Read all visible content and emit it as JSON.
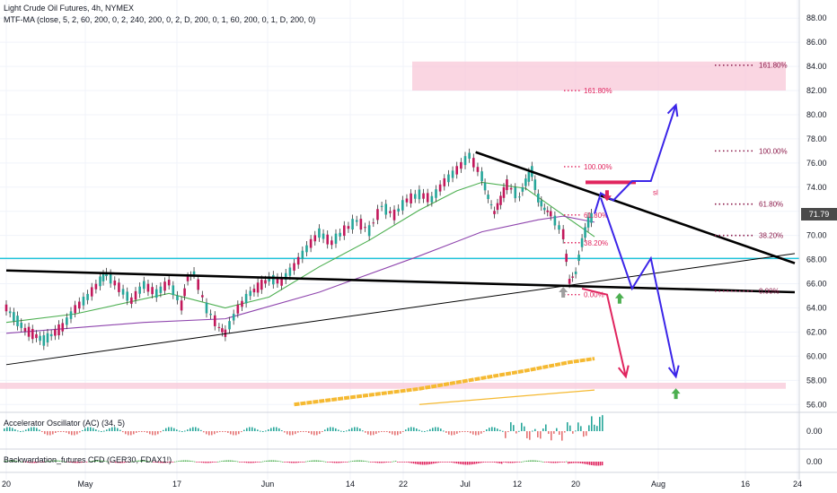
{
  "header": {
    "title": "Light Crude Oil Futures, 4h, NYMEX",
    "indicator": "MTF-MA (close, 5, 2, 60, 200, 0, 2, 240, 200, 0, 2, D, 200, 0, 1, 60, 200, 0, 1, D, 200, 0)"
  },
  "last_price": "71.79",
  "sl_label": "sl",
  "panes": {
    "ac_title": "Accelerator Oscillator (AC) (34, 5)",
    "ac_value": "0.00",
    "bw_title": "Backwardation_futures CFD (GER30, FDAX1!)",
    "bw_value": "0.00"
  },
  "chart_data": {
    "type": "line",
    "title": "Light Crude Oil Futures, 4h, NYMEX",
    "xlabel": "",
    "ylabel": "",
    "ylim": [
      55.5,
      89.5
    ],
    "y_ticks": [
      "88.00",
      "86.00",
      "84.00",
      "82.00",
      "80.00",
      "78.00",
      "76.00",
      "74.00",
      "72.00",
      "70.00",
      "68.00",
      "66.00",
      "64.00",
      "62.00",
      "60.00",
      "58.00",
      "56.00"
    ],
    "x_ticks": [
      "20",
      "May",
      "17",
      "Jun",
      "14",
      "22",
      "Jul",
      "12",
      "20",
      "Aug",
      "16",
      "24"
    ],
    "price_path": [
      {
        "t": "Apr 20",
        "v": 64.0
      },
      {
        "t": "Apr 23",
        "v": 62.2
      },
      {
        "t": "Apr 26",
        "v": 61.3
      },
      {
        "t": "Apr 29",
        "v": 62.4
      },
      {
        "t": "May 1",
        "v": 63.9
      },
      {
        "t": "May 3",
        "v": 64.9
      },
      {
        "t": "May 5",
        "v": 66.2
      },
      {
        "t": "May 6",
        "v": 66.8
      },
      {
        "t": "May 8",
        "v": 65.7
      },
      {
        "t": "May 10",
        "v": 64.6
      },
      {
        "t": "May 12",
        "v": 65.9
      },
      {
        "t": "May 14",
        "v": 65.2
      },
      {
        "t": "May 16",
        "v": 66.1
      },
      {
        "t": "May 18",
        "v": 64.2
      },
      {
        "t": "May 19",
        "v": 66.4
      },
      {
        "t": "May 20",
        "v": 66.9
      },
      {
        "t": "May 22",
        "v": 64.0
      },
      {
        "t": "May 24",
        "v": 62.4
      },
      {
        "t": "May 25",
        "v": 61.9
      },
      {
        "t": "May 27",
        "v": 63.9
      },
      {
        "t": "May 29",
        "v": 65.2
      },
      {
        "t": "Jun 1",
        "v": 66.4
      },
      {
        "t": "Jun 3",
        "v": 66.2
      },
      {
        "t": "Jun 5",
        "v": 67.4
      },
      {
        "t": "Jun 7",
        "v": 68.9
      },
      {
        "t": "Jun 9",
        "v": 70.2
      },
      {
        "t": "Jun 11",
        "v": 69.4
      },
      {
        "t": "Jun 13",
        "v": 70.4
      },
      {
        "t": "Jun 15",
        "v": 71.2
      },
      {
        "t": "Jun 17",
        "v": 70.4
      },
      {
        "t": "Jun 19",
        "v": 72.4
      },
      {
        "t": "Jun 21",
        "v": 71.7
      },
      {
        "t": "Jun 23",
        "v": 72.9
      },
      {
        "t": "Jun 25",
        "v": 73.4
      },
      {
        "t": "Jun 27",
        "v": 73.0
      },
      {
        "t": "Jun 29",
        "v": 74.4
      },
      {
        "t": "Jul 1",
        "v": 75.4
      },
      {
        "t": "Jul 3",
        "v": 76.6
      },
      {
        "t": "Jul 5",
        "v": 74.9
      },
      {
        "t": "Jul 6",
        "v": 73.2
      },
      {
        "t": "Jul 7",
        "v": 71.9
      },
      {
        "t": "Jul 8",
        "v": 72.9
      },
      {
        "t": "Jul 9",
        "v": 74.2
      },
      {
        "t": "Jul 11",
        "v": 73.2
      },
      {
        "t": "Jul 12",
        "v": 74.4
      },
      {
        "t": "Jul 13",
        "v": 75.3
      },
      {
        "t": "Jul 14",
        "v": 73.1
      },
      {
        "t": "Jul 15",
        "v": 72.2
      },
      {
        "t": "Jul 16",
        "v": 71.8
      },
      {
        "t": "Jul 18",
        "v": 70.1
      },
      {
        "t": "Jul 19",
        "v": 66.2
      },
      {
        "t": "Jul 20",
        "v": 66.9
      },
      {
        "t": "Jul 21",
        "v": 69.4
      },
      {
        "t": "Jul 22",
        "v": 71.1
      },
      {
        "t": "Jul 23",
        "v": 71.8
      }
    ],
    "series": [
      {
        "name": "MA green",
        "color": "#4caf50",
        "points": [
          {
            "t": "Apr 20",
            "v": 62.8
          },
          {
            "t": "May 1",
            "v": 63.5
          },
          {
            "t": "May 16",
            "v": 65.2
          },
          {
            "t": "May 25",
            "v": 64.0
          },
          {
            "t": "Jun 1",
            "v": 64.9
          },
          {
            "t": "Jun 9",
            "v": 67.4
          },
          {
            "t": "Jun 17",
            "v": 69.6
          },
          {
            "t": "Jun 25",
            "v": 72.1
          },
          {
            "t": "Jul 1",
            "v": 73.7
          },
          {
            "t": "Jul 5",
            "v": 74.4
          },
          {
            "t": "Jul 12",
            "v": 73.9
          },
          {
            "t": "Jul 18",
            "v": 71.7
          },
          {
            "t": "Jul 23",
            "v": 69.9
          }
        ]
      },
      {
        "name": "MA purple",
        "color": "#8e44ad",
        "points": [
          {
            "t": "Apr 20",
            "v": 61.9
          },
          {
            "t": "May 12",
            "v": 62.8
          },
          {
            "t": "May 25",
            "v": 63.1
          },
          {
            "t": "Jun 9",
            "v": 65.3
          },
          {
            "t": "Jun 25",
            "v": 68.3
          },
          {
            "t": "Jul 5",
            "v": 70.3
          },
          {
            "t": "Jul 14",
            "v": 71.3
          },
          {
            "t": "Jul 18",
            "v": 71.6
          },
          {
            "t": "Jul 23",
            "v": 71.1
          }
        ]
      },
      {
        "name": "MA orange",
        "color": "#f5b931",
        "points": [
          {
            "t": "Jun 5",
            "v": 56.0
          },
          {
            "t": "Jun 25",
            "v": 57.3
          },
          {
            "t": "Jul 12",
            "v": 58.8
          },
          {
            "t": "Jul 19",
            "v": 59.5
          },
          {
            "t": "Jul 23",
            "v": 59.8
          }
        ]
      }
    ],
    "trendlines": [
      {
        "name": "descending resistance",
        "color": "#000000",
        "from": {
          "t": "Jul 4",
          "v": 76.9
        },
        "to": {
          "t": "Aug 24",
          "v": 67.7
        }
      },
      {
        "name": "lower support",
        "color": "#000000",
        "from": {
          "t": "Apr 20",
          "v": 67.1
        },
        "to": {
          "t": "Aug 24",
          "v": 65.3
        }
      },
      {
        "name": "rising line",
        "color": "#000000",
        "from": {
          "t": "Apr 20",
          "v": 59.3
        },
        "to": {
          "t": "Aug 24",
          "v": 68.5
        }
      }
    ],
    "horizontal_line": {
      "color": "#00bcd4",
      "v": 68.1
    },
    "zones": [
      {
        "color": "#f8c8d8",
        "from_t": "Jun 27",
        "to_t": "Aug 24",
        "v_low": 82.0,
        "v_high": 84.4
      },
      {
        "color": "#f8c8d8",
        "from_t": "Apr 20",
        "to_t": "Aug 24",
        "v_low": 57.3,
        "v_high": 57.8
      }
    ],
    "fib_levels_left": [
      {
        "label": "161.80%",
        "v": 82.0
      },
      {
        "label": "100.00%",
        "v": 75.7
      },
      {
        "label": "61.80%",
        "v": 71.7
      },
      {
        "label": "38.20%",
        "v": 69.4
      },
      {
        "label": "0.00%",
        "v": 65.1
      }
    ],
    "fib_levels_right": [
      {
        "label": "161.80%",
        "v": 84.1
      },
      {
        "label": "100.00%",
        "v": 77.0
      },
      {
        "label": "61.80%",
        "v": 72.6
      },
      {
        "label": "38.20%",
        "v": 70.0
      },
      {
        "label": "0.00%",
        "v": 65.4
      }
    ],
    "scenario_paths": [
      {
        "name": "bullish",
        "color": "#3b25e8",
        "points": [
          {
            "t": "Jul 23",
            "v": 71.8
          },
          {
            "t": "Jul 24",
            "v": 73.5
          },
          {
            "t": "Jul 26",
            "v": 72.9
          },
          {
            "t": "Jul 29",
            "v": 74.5
          },
          {
            "t": "Aug 1",
            "v": 74.5
          },
          {
            "t": "Aug 5",
            "v": 80.8
          }
        ]
      },
      {
        "name": "alt down",
        "color": "#3b25e8",
        "points": [
          {
            "t": "Jul 24",
            "v": 73.1
          },
          {
            "t": "Jul 29",
            "v": 65.6
          },
          {
            "t": "Aug 1",
            "v": 68.1
          },
          {
            "t": "Aug 5",
            "v": 58.3
          }
        ]
      },
      {
        "name": "bearish",
        "color": "#e0245e",
        "points": [
          {
            "t": "Jul 21",
            "v": 65.6
          },
          {
            "t": "Jul 25",
            "v": 65.1
          },
          {
            "t": "Jul 28",
            "v": 58.3
          }
        ]
      }
    ],
    "markers": [
      {
        "type": "arrow-up",
        "color": "#4caf50",
        "t": "Jul 27",
        "v": 64.8
      },
      {
        "type": "arrow-up",
        "color": "#4caf50",
        "t": "Aug 5",
        "v": 56.9
      },
      {
        "type": "arrow-up",
        "color": "#9e9e9e",
        "t": "Jul 18",
        "v": 65.3
      },
      {
        "type": "arrow-down",
        "color": "#e0245e",
        "t": "Jul 25",
        "v": 73.3
      }
    ],
    "stop_loss": {
      "label": "sl",
      "color": "#e0245e",
      "v": 74.4
    }
  }
}
